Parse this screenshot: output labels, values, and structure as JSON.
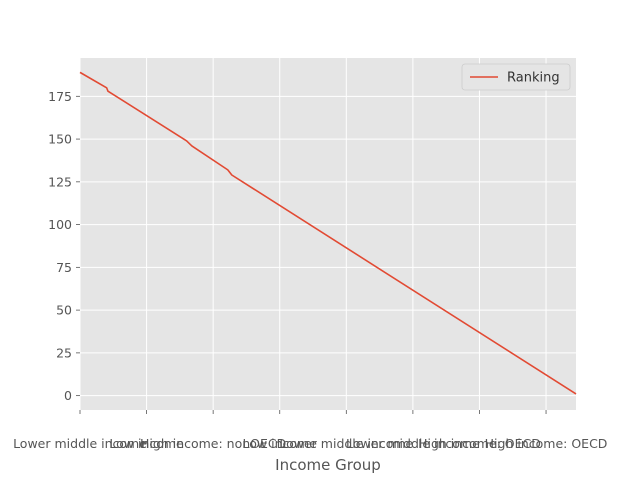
{
  "chart_data": {
    "type": "line",
    "title": "",
    "xlabel": "Income Group",
    "ylabel": "",
    "x_tick_labels": [
      "Lower middle income",
      "Low income",
      "High income: nonOECD",
      "Low income",
      "Lower middle income",
      "Lower middle income",
      "High income: OECD",
      "High income: OECD"
    ],
    "y_ticks": [
      0,
      25,
      50,
      75,
      100,
      125,
      150,
      175
    ],
    "ylim": [
      -8.4,
      197.4
    ],
    "grid": true,
    "legend": {
      "position": "upper right",
      "entries": [
        "Ranking"
      ]
    },
    "series": [
      {
        "name": "Ranking",
        "color": "#E24A33",
        "x": [
          0,
          0.4,
          0.42,
          1.6,
          1.68,
          2.22,
          2.28,
          7.45
        ],
        "y": [
          189,
          180,
          178,
          149,
          146,
          132,
          129,
          1
        ]
      }
    ]
  }
}
